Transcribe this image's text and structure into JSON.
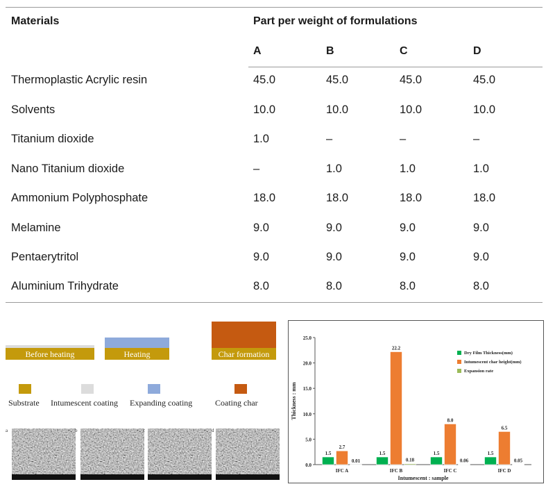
{
  "table": {
    "materials_header": "Materials",
    "group_header": "Part per weight of formulations",
    "columns": [
      "A",
      "B",
      "C",
      "D"
    ],
    "rows": [
      {
        "material": "Thermoplastic Acrylic resin",
        "values": [
          "45.0",
          "45.0",
          "45.0",
          "45.0"
        ]
      },
      {
        "material": "Solvents",
        "values": [
          "10.0",
          "10.0",
          "10.0",
          "10.0"
        ]
      },
      {
        "material": "Titanium dioxide",
        "values": [
          "1.0",
          "–",
          "–",
          "–"
        ]
      },
      {
        "material": "Nano Titanium dioxide",
        "values": [
          "–",
          "1.0",
          "1.0",
          "1.0"
        ]
      },
      {
        "material": "Ammonium Polyphosphate",
        "values": [
          "18.0",
          "18.0",
          "18.0",
          "18.0"
        ]
      },
      {
        "material": "Melamine",
        "values": [
          "9.0",
          "9.0",
          "9.0",
          "9.0"
        ]
      },
      {
        "material": "Pentaerytritol",
        "values": [
          "9.0",
          "9.0",
          "9.0",
          "9.0"
        ]
      },
      {
        "material": "Aluminium Trihydrate",
        "values": [
          "8.0",
          "8.0",
          "8.0",
          "8.0"
        ]
      }
    ]
  },
  "schematic": {
    "stages": [
      "Before heating",
      "Heating",
      "Char formation"
    ],
    "legend": [
      {
        "label": "Substrate",
        "color": "#c49a0c"
      },
      {
        "label": "Intumescent coating",
        "color": "#dcdcdc"
      },
      {
        "label": "Expanding  coating",
        "color": "#8eaadb"
      },
      {
        "label": "Coating char",
        "color": "#c55a11"
      }
    ],
    "sem_labels": [
      "a",
      "b",
      "c",
      "d"
    ]
  },
  "chart_data": {
    "type": "bar",
    "categories": [
      "IFC A",
      "IFC B",
      "IFC C",
      "IFC D"
    ],
    "series": [
      {
        "name": "Dry Film Thickness(mm)",
        "color": "#00b050",
        "values": [
          1.5,
          1.5,
          1.5,
          1.5
        ]
      },
      {
        "name": "Intumescent char height(mm)",
        "color": "#ed7d31",
        "values": [
          2.7,
          22.2,
          8.0,
          6.5
        ]
      },
      {
        "name": "Expansion rate",
        "color": "#9bbb59",
        "values": [
          0.01,
          0.18,
          0.06,
          0.05
        ]
      }
    ],
    "data_labels": [
      [
        "1.5",
        "1.5",
        "1.5",
        "1.5"
      ],
      [
        "2.7",
        "22.2",
        "8.0",
        "6.5"
      ],
      [
        "0.01",
        "0.18",
        "0.06",
        "0.05"
      ]
    ],
    "ylabel": "Thickness :  mm",
    "xlabel": "Intumescent : sample",
    "ylim": [
      0,
      25
    ],
    "yticks": [
      "0.0",
      "5.0",
      "10.0",
      "15.0",
      "20.0",
      "25.0"
    ],
    "legend_position": "top-right"
  }
}
